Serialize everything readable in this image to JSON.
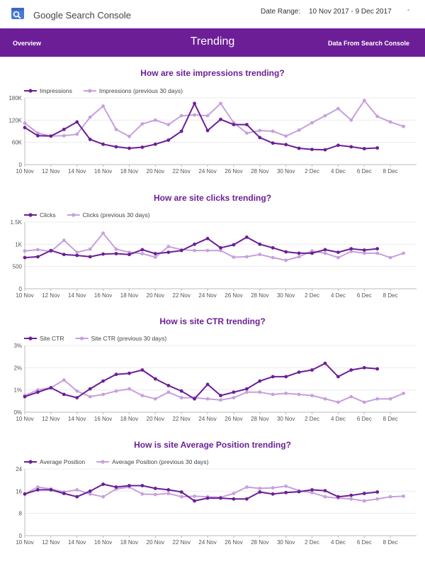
{
  "header": {
    "app_title": "Google Search Console",
    "date_range_label": "Date Range:",
    "date_range_value": "10 Nov 2017 - 9 Dec 2017",
    "dropdown_caret": "-"
  },
  "banner": {
    "left_link": "Overview",
    "title": "Trending",
    "right_link": "Data From Search Console"
  },
  "colors": {
    "primary": "#6c1e97",
    "previous": "#c6a0dd"
  },
  "chart_data": [
    {
      "type": "line",
      "title": "How are site impressions trending?",
      "x_ticks": [
        "10 Nov",
        "12 Nov",
        "14 Nov",
        "16 Nov",
        "18 Nov",
        "20 Nov",
        "22 Nov",
        "24 Nov",
        "26 Nov",
        "28 Nov",
        "30 Nov",
        "2 Dec",
        "4 Dec",
        "6 Dec",
        "8 Dec"
      ],
      "y_ticks": [
        "0",
        "60K",
        "120K",
        "180K"
      ],
      "ylim": [
        0,
        180000
      ],
      "series": [
        {
          "name": "Impressions",
          "values": [
            100000,
            78000,
            77000,
            95000,
            115000,
            68000,
            55000,
            48000,
            44000,
            47000,
            55000,
            66000,
            90000,
            165000,
            92000,
            122000,
            108000,
            108000,
            73000,
            58000,
            54000,
            44000,
            41000,
            40000,
            52000,
            48000,
            43000,
            45000
          ]
        },
        {
          "name": "Impressions (previous 30 days)",
          "values": [
            112000,
            85000,
            77000,
            78000,
            82000,
            128000,
            158000,
            95000,
            76000,
            110000,
            120000,
            108000,
            132000,
            134000,
            132000,
            165000,
            113000,
            85000,
            92000,
            90000,
            77000,
            93000,
            113000,
            132000,
            151000,
            120000,
            173000,
            130000,
            115000,
            103000
          ]
        }
      ]
    },
    {
      "type": "line",
      "title": "How are site clicks trending?",
      "x_ticks": [
        "10 Nov",
        "12 Nov",
        "14 Nov",
        "16 Nov",
        "18 Nov",
        "20 Nov",
        "22 Nov",
        "24 Nov",
        "26 Nov",
        "28 Nov",
        "30 Nov",
        "2 Dec",
        "4 Dec",
        "6 Dec",
        "8 Dec"
      ],
      "y_ticks": [
        "0",
        "500",
        "1K",
        "1.5K"
      ],
      "ylim": [
        0,
        1500
      ],
      "series": [
        {
          "name": "Clicks",
          "values": [
            700,
            720,
            860,
            770,
            750,
            720,
            780,
            790,
            770,
            880,
            790,
            820,
            860,
            1000,
            1130,
            920,
            990,
            1160,
            1000,
            920,
            830,
            800,
            800,
            880,
            820,
            900,
            870,
            900
          ]
        },
        {
          "name": "Clicks (previous 30 days)",
          "values": [
            850,
            880,
            840,
            1090,
            820,
            890,
            1250,
            890,
            820,
            790,
            710,
            950,
            880,
            860,
            860,
            860,
            710,
            720,
            770,
            700,
            640,
            720,
            850,
            800,
            700,
            840,
            800,
            800,
            700,
            800
          ]
        }
      ]
    },
    {
      "type": "line",
      "title": "How is site CTR trending?",
      "x_ticks": [
        "10 Nov",
        "12 Nov",
        "14 Nov",
        "16 Nov",
        "18 Nov",
        "20 Nov",
        "22 Nov",
        "24 Nov",
        "26 Nov",
        "28 Nov",
        "30 Nov",
        "2 Dec",
        "4 Dec",
        "6 Dec",
        "8 Dec"
      ],
      "y_ticks": [
        "0%",
        "1%",
        "2%",
        "3%"
      ],
      "ylim": [
        0,
        3
      ],
      "series": [
        {
          "name": "Site CTR",
          "values": [
            0.7,
            0.9,
            1.1,
            0.8,
            0.65,
            1.05,
            1.4,
            1.7,
            1.75,
            1.9,
            1.5,
            1.2,
            0.95,
            0.6,
            1.25,
            0.75,
            0.9,
            1.05,
            1.4,
            1.6,
            1.6,
            1.8,
            1.9,
            2.2,
            1.6,
            1.9,
            2.0,
            1.95
          ]
        },
        {
          "name": "Site CTR (previous 30 days)",
          "values": [
            0.75,
            1.0,
            1.1,
            1.45,
            0.95,
            0.7,
            0.8,
            0.95,
            1.05,
            0.75,
            0.6,
            0.9,
            0.65,
            0.65,
            0.6,
            0.55,
            0.65,
            0.9,
            0.9,
            0.8,
            0.85,
            0.8,
            0.75,
            0.6,
            0.45,
            0.7,
            0.45,
            0.6,
            0.6,
            0.85
          ]
        }
      ]
    },
    {
      "type": "line",
      "title": "How is site Average Position trending?",
      "x_ticks": [
        "10 Nov",
        "12 Nov",
        "14 Nov",
        "16 Nov",
        "18 Nov",
        "20 Nov",
        "22 Nov",
        "24 Nov",
        "26 Nov",
        "28 Nov",
        "30 Nov",
        "2 Dec",
        "4 Dec",
        "6 Dec",
        "8 Dec"
      ],
      "y_ticks": [
        "0",
        "8",
        "16",
        "24"
      ],
      "ylim": [
        0,
        24
      ],
      "series": [
        {
          "name": "Average Position",
          "values": [
            15,
            16.5,
            16.5,
            15.2,
            14,
            16,
            18.5,
            17.5,
            18,
            18,
            17,
            16.5,
            15.7,
            12.5,
            13.5,
            13.5,
            13.2,
            13.2,
            15.7,
            15,
            15.5,
            15.8,
            16.5,
            16.2,
            14,
            14.5,
            15.2,
            15.7
          ]
        },
        {
          "name": "Average Position (previous 30 days)",
          "values": [
            15,
            17.5,
            16.8,
            15.7,
            16.5,
            15,
            14,
            16.8,
            17.5,
            15,
            14.8,
            15.2,
            14,
            14.2,
            14,
            13.8,
            15.2,
            17.5,
            17,
            17.2,
            17.8,
            16.2,
            15.5,
            14,
            13.5,
            13.2,
            12.5,
            13.2,
            14,
            14.2
          ]
        }
      ]
    }
  ]
}
